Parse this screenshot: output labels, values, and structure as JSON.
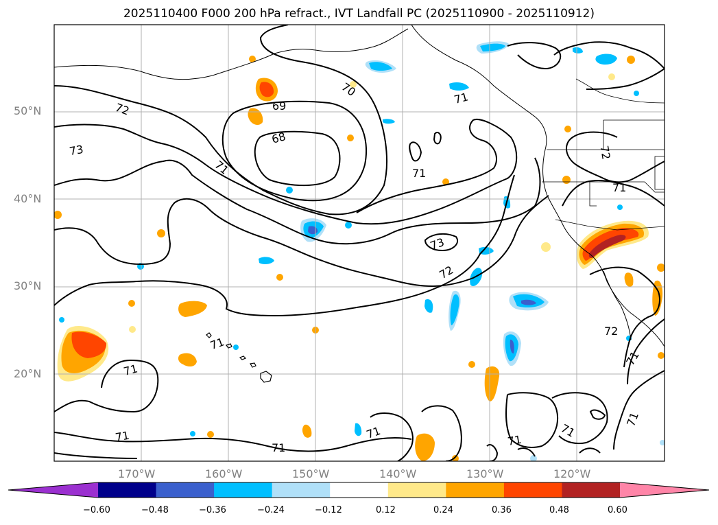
{
  "title": "2025110400 F000 200 hPa refract., IVT Landfall PC (2025110900 - 2025110912)",
  "axes": {
    "lat_labels": [
      "50°N",
      "40°N",
      "30°N",
      "20°N"
    ],
    "lon_labels": [
      "170°W",
      "160°W",
      "150°W",
      "140°W",
      "130°W",
      "120°W"
    ]
  },
  "contour_labels": [
    "72",
    "73",
    "69",
    "68",
    "71",
    "70",
    "71",
    "71",
    "73",
    "72",
    "71",
    "72",
    "71",
    "71",
    "71",
    "71",
    "71",
    "71",
    "71",
    "71",
    "71",
    "72"
  ],
  "colorbar": {
    "ticks": [
      "−0.60",
      "−0.48",
      "−0.36",
      "−0.24",
      "−0.12",
      "0.12",
      "0.24",
      "0.36",
      "0.48",
      "0.60"
    ],
    "colors": [
      "#9b30d0",
      "#00008b",
      "#3a5fcd",
      "#00bfff",
      "#b0e0f8",
      "#ffffff",
      "#ffe98a",
      "#ffa500",
      "#ff4500",
      "#b22222",
      "#ff85a8"
    ]
  }
}
